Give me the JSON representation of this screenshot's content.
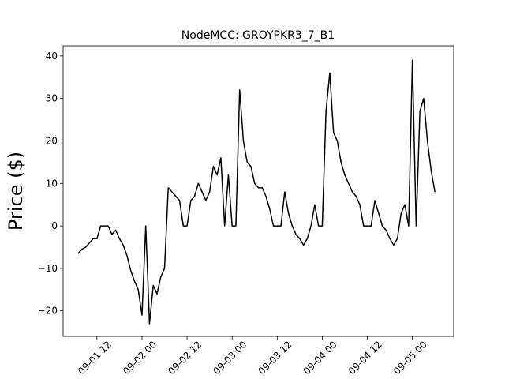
{
  "chart_data": {
    "type": "line",
    "title": "NodeMCC: GROYPKR3_7_B1",
    "y_label": "Price ($)",
    "color": "#000000",
    "x": [
      "09-01 07",
      "09-01 08",
      "09-01 09",
      "09-01 10",
      "09-01 11",
      "09-01 12",
      "09-01 13",
      "09-01 14",
      "09-01 15",
      "09-01 16",
      "09-01 17",
      "09-01 18",
      "09-01 19",
      "09-01 20",
      "09-01 21",
      "09-01 22",
      "09-01 23",
      "09-02 00",
      "09-02 01",
      "09-02 02",
      "09-02 03",
      "09-02 04",
      "09-02 05",
      "09-02 06",
      "09-02 07",
      "09-02 08",
      "09-02 09",
      "09-02 10",
      "09-02 11",
      "09-02 12",
      "09-02 13",
      "09-02 14",
      "09-02 15",
      "09-02 16",
      "09-02 17",
      "09-02 18",
      "09-02 19",
      "09-02 20",
      "09-02 21",
      "09-02 22",
      "09-02 23",
      "09-03 00",
      "09-03 01",
      "09-03 02",
      "09-03 03",
      "09-03 04",
      "09-03 05",
      "09-03 06",
      "09-03 07",
      "09-03 08",
      "09-03 09",
      "09-03 10",
      "09-03 11",
      "09-03 12",
      "09-03 13",
      "09-03 14",
      "09-03 15",
      "09-03 16",
      "09-03 17",
      "09-03 18",
      "09-03 19",
      "09-03 20",
      "09-03 21",
      "09-03 22",
      "09-03 23",
      "09-04 00",
      "09-04 01",
      "09-04 02",
      "09-04 03",
      "09-04 04",
      "09-04 05",
      "09-04 06",
      "09-04 07",
      "09-04 08",
      "09-04 09",
      "09-04 10",
      "09-04 11",
      "09-04 12",
      "09-04 13",
      "09-04 14",
      "09-04 15",
      "09-04 16",
      "09-04 17",
      "09-04 18",
      "09-04 19",
      "09-04 20",
      "09-04 21",
      "09-04 22",
      "09-04 23",
      "09-05 00",
      "09-05 01",
      "09-05 02",
      "09-05 03",
      "09-05 04",
      "09-05 05",
      "09-05 06"
    ],
    "values": [
      -6.5,
      -5.5,
      -5,
      -4,
      -3,
      -3,
      0,
      0,
      0,
      -2,
      -1,
      -3,
      -4.5,
      -7,
      -10.5,
      -13,
      -15,
      -21,
      0,
      -23,
      -14,
      -16,
      -12,
      -10,
      9,
      8,
      7,
      6,
      0,
      0,
      6,
      7,
      10,
      8,
      6,
      8,
      14,
      12,
      16,
      0,
      12,
      0,
      0,
      32,
      20,
      15,
      14,
      10,
      9,
      9,
      7,
      4,
      0,
      0,
      0,
      8,
      3,
      0,
      -2,
      -3,
      -4.5,
      -3,
      0,
      5,
      0,
      0,
      27,
      36,
      22,
      20,
      15,
      12,
      10,
      8,
      7,
      5,
      0,
      0,
      0,
      6,
      3,
      0,
      -1,
      -3,
      -4.5,
      -3,
      3,
      5,
      0,
      39,
      0,
      27,
      30,
      20,
      13,
      8
    ],
    "xlim": [
      "09-01 03",
      "09-05 11"
    ],
    "xticks": [
      "09-01 12",
      "09-02 00",
      "09-02 12",
      "09-03 00",
      "09-03 12",
      "09-04 00",
      "09-04 12",
      "09-05 00"
    ],
    "ylim": [
      -26,
      42.4
    ],
    "yticks": [
      {
        "value": -20,
        "label": "−20"
      },
      {
        "value": -10,
        "label": "−10"
      },
      0,
      10,
      20,
      30,
      40
    ]
  }
}
